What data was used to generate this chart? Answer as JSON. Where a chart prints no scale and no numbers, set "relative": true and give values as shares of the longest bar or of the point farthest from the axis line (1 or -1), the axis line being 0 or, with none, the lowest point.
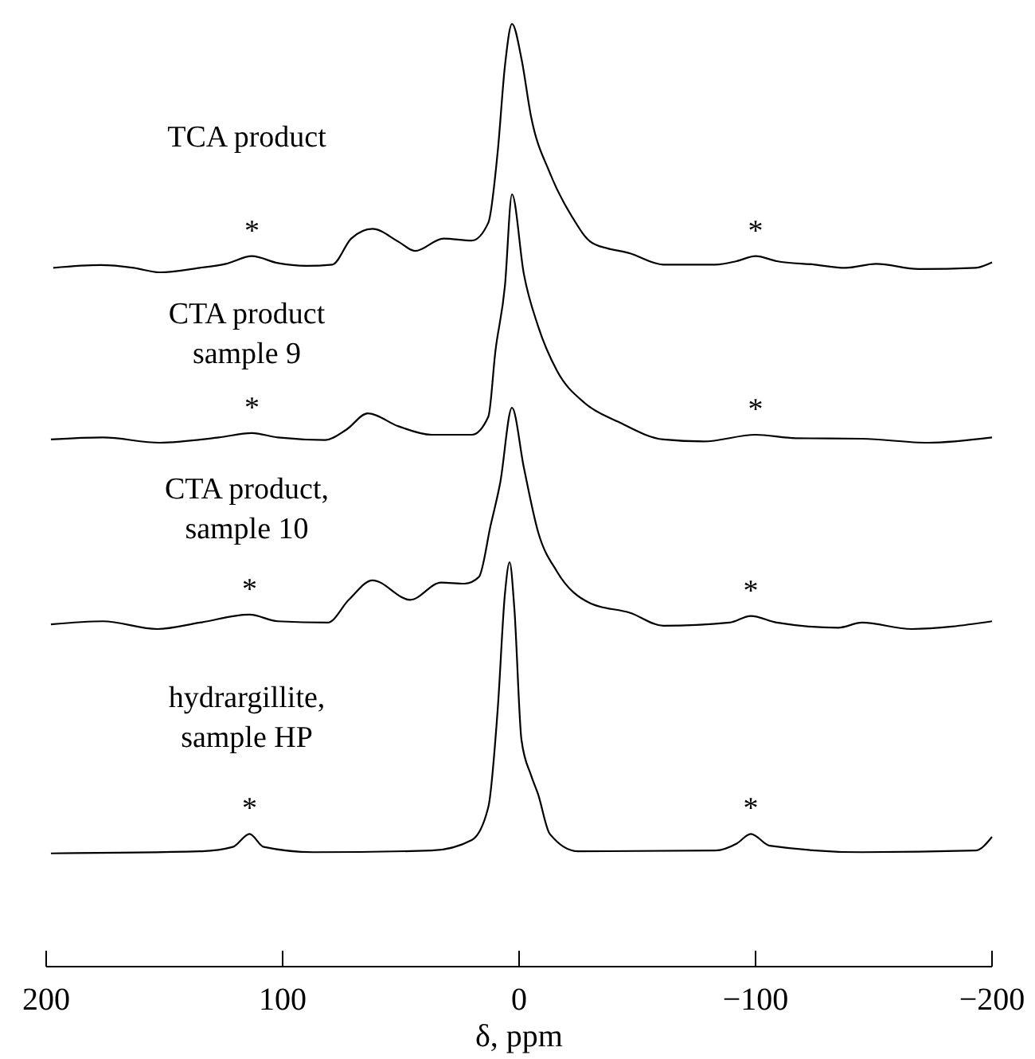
{
  "chart_data": [
    {
      "type": "line",
      "title": "TCA product",
      "relative": true,
      "color": "#000000",
      "xlim": [
        200,
        -200
      ],
      "tick_labels": false,
      "x": [
        197,
        177,
        163,
        152,
        135,
        124,
        113,
        102,
        90,
        79,
        71,
        62,
        51,
        44,
        32,
        20,
        13,
        9,
        6,
        3,
        -1,
        -5,
        -13,
        -22,
        -31,
        -47,
        -61,
        -83,
        -92,
        -100,
        -109,
        -125,
        -138,
        -151,
        -169,
        -193,
        -200
      ],
      "values": [
        0.018,
        0.029,
        0.018,
        0,
        0.018,
        0.034,
        0.065,
        0.037,
        0.026,
        0.031,
        0.136,
        0.175,
        0.123,
        0.086,
        0.136,
        0.128,
        0.2,
        0.49,
        0.83,
        1.0,
        0.86,
        0.63,
        0.4,
        0.23,
        0.118,
        0.076,
        0.031,
        0.031,
        0.045,
        0.065,
        0.045,
        0.031,
        0.018,
        0.034,
        0.013,
        0.018,
        0.04
      ],
      "annotations": [
        {
          "text": "*",
          "x": 113,
          "y": 0.065
        },
        {
          "text": "*",
          "x": -100,
          "y": 0.065
        }
      ]
    },
    {
      "type": "line",
      "title": "CTA product\nsample 9",
      "relative": true,
      "color": "#000000",
      "xlim": [
        200,
        -200
      ],
      "tick_labels": false,
      "x": [
        198,
        176,
        152,
        127,
        113,
        102,
        82,
        73,
        64,
        51,
        37,
        20,
        13,
        10,
        6,
        3,
        -2,
        -8,
        -16,
        -28,
        -42,
        -61,
        -78,
        -100,
        -117,
        -145,
        -173,
        -200
      ],
      "values": [
        0.013,
        0.021,
        0,
        0.021,
        0.039,
        0.021,
        0.011,
        0.053,
        0.118,
        0.066,
        0.032,
        0.032,
        0.105,
        0.37,
        0.63,
        1.0,
        0.68,
        0.47,
        0.29,
        0.158,
        0.084,
        0.013,
        0.005,
        0.032,
        0.018,
        0.016,
        0,
        0.021
      ],
      "annotations": [
        {
          "text": "*",
          "x": 113,
          "y": 0.039
        },
        {
          "text": "*",
          "x": -100,
          "y": 0.032
        }
      ]
    },
    {
      "type": "line",
      "title": "CTA product,\nsample 10",
      "relative": true,
      "color": "#000000",
      "xlim": [
        200,
        -200
      ],
      "tick_labels": false,
      "x": [
        198,
        176,
        153,
        135,
        114,
        102,
        81,
        72,
        62,
        46,
        33,
        23,
        17,
        12,
        8,
        3,
        -2,
        -8,
        -16,
        -30,
        -47,
        -61,
        -89,
        -98,
        -109,
        -135,
        -145,
        -166,
        -200
      ],
      "values": [
        0.021,
        0.035,
        0,
        0.029,
        0.065,
        0.035,
        0.029,
        0.132,
        0.22,
        0.132,
        0.21,
        0.205,
        0.235,
        0.47,
        0.66,
        1.0,
        0.73,
        0.44,
        0.26,
        0.117,
        0.073,
        0.015,
        0.029,
        0.059,
        0.029,
        0.006,
        0.029,
        0,
        0.035
      ],
      "annotations": [
        {
          "text": "*",
          "x": 114,
          "y": 0.065
        },
        {
          "text": "*",
          "x": -98,
          "y": 0.059
        }
      ]
    },
    {
      "type": "line",
      "title": "hydrargillite,\nsample HP",
      "relative": true,
      "color": "#000000",
      "xlabel": "δ, ppm",
      "xlim": [
        200,
        -200
      ],
      "xticks": [
        200,
        100,
        0,
        {
          "value": -100,
          "label": "−100"
        },
        {
          "value": -200,
          "label": "−200"
        }
      ],
      "tick_labels": "x",
      "x": [
        198,
        135,
        121,
        114,
        108,
        87,
        37,
        20,
        13,
        9,
        6,
        4,
        2,
        -1,
        -5,
        -8,
        -13,
        -25,
        -83,
        -92,
        -98,
        -106,
        -145,
        -193,
        -200
      ],
      "values": [
        0.28,
        0.285,
        0.296,
        0.328,
        0.296,
        0.283,
        0.287,
        0.313,
        0.395,
        0.64,
        0.921,
        1.0,
        0.885,
        0.561,
        0.474,
        0.427,
        0.328,
        0.285,
        0.287,
        0.304,
        0.328,
        0.299,
        0.283,
        0.287,
        0.321
      ],
      "annotations": [
        {
          "text": "*",
          "x": 114,
          "y": 0.328
        },
        {
          "text": "*",
          "x": -98,
          "y": 0.328
        }
      ]
    }
  ]
}
